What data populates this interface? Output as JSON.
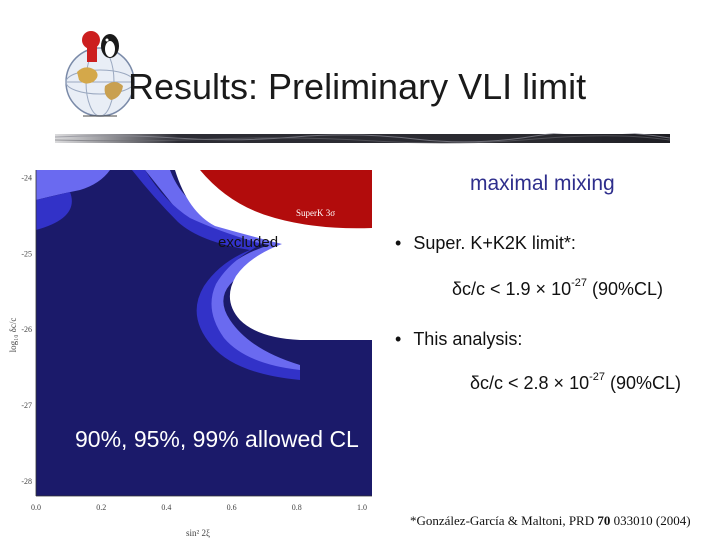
{
  "slide": {
    "title": "Results: Preliminary VLI limit",
    "label_mixing": "maximal mixing",
    "bullets": [
      {
        "text": "Super. K+K2K limit*:",
        "formula_pre": "δc/c < 1.9 × 10",
        "formula_exp": "-27",
        "formula_post": " (90%CL)"
      },
      {
        "text": "This analysis:",
        "formula_pre": "δc/c < 2.8 × 10",
        "formula_exp": "-27",
        "formula_post": " (90%CL)"
      }
    ],
    "allowed_label": "90%, 95%, 99% allowed CL",
    "excluded_label": "excluded",
    "reference_pre": "*González-García & Maltoni, PRD ",
    "reference_vol": "70",
    "reference_post": " 033010 (2004)"
  },
  "colors": {
    "navy": "#1b1a6a",
    "blue_mid": "#3232c8",
    "blue_light": "#6a6af0",
    "red": "#b20c0c",
    "text_title": "#1a1a1a",
    "text_mixing": "#2e2e8c"
  },
  "chart_data": {
    "type": "contour",
    "xlabel": "sin² 2ξ",
    "ylabel": "log₁₀ δc/c",
    "x_ticks": [
      "0.0",
      "0.2",
      "0.4",
      "0.6",
      "0.8",
      "1.0"
    ],
    "y_ticks": [
      "-24",
      "-25",
      "-26",
      "-27",
      "-28"
    ],
    "xlim": [
      0,
      1
    ],
    "ylim": [
      -28.2,
      -23.9
    ],
    "superk_label": "SuperK 3σ",
    "regions": [
      "90% allowed",
      "95% allowed",
      "99% allowed",
      "excluded",
      "SuperK 3σ"
    ]
  },
  "icons": {
    "logo": "globe-logo-icon",
    "rule": "decorative-rule"
  }
}
